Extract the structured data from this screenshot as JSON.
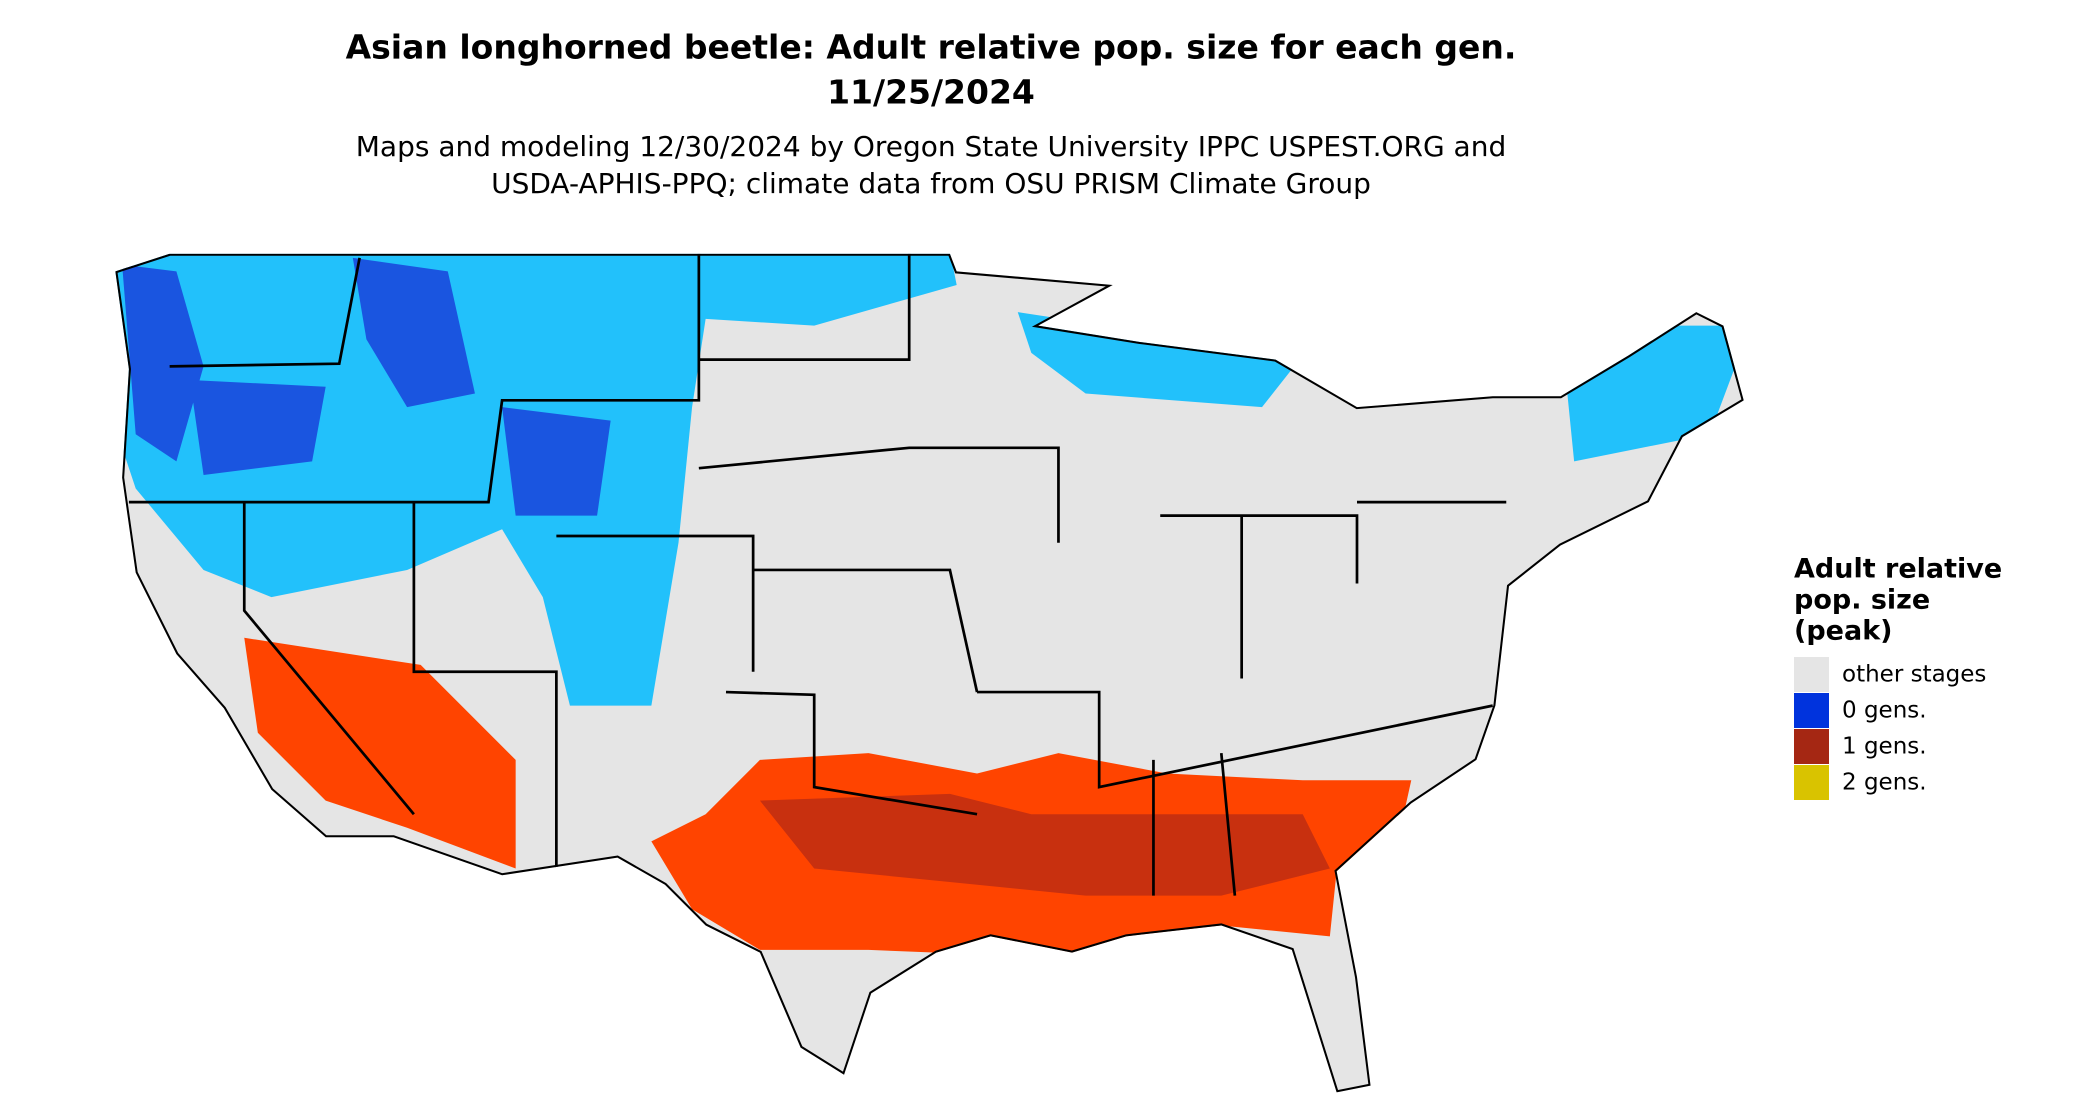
{
  "title": [
    "Asian longhorned beetle: Adult relative pop. size for each gen.",
    "11/25/2024"
  ],
  "subtitle": [
    "Maps and modeling 12/30/2024 by Oregon State University IPPC USPEST.ORG and",
    "USDA-APHIS-PPQ; climate data from OSU PRISM Climate Group"
  ],
  "legend": {
    "title": [
      "Adult relative",
      "pop. size",
      "(peak)"
    ],
    "items": [
      {
        "label": "other stages",
        "color": "#e5e5e5"
      },
      {
        "label": "0 gens.",
        "color": "#0033dd"
      },
      {
        "label": "1 gens.",
        "color": "#a52713"
      },
      {
        "label": "2 gens.",
        "color": "#d9c300"
      }
    ]
  }
}
